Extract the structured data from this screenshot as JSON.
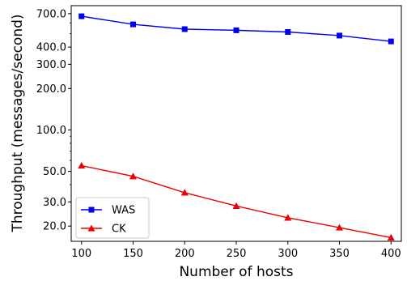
{
  "chart_data": {
    "type": "line",
    "xlabel": "Number of hosts",
    "ylabel": "Throughput (messages/second)",
    "x": [
      100,
      150,
      200,
      250,
      300,
      350,
      400
    ],
    "xlim": [
      90,
      410
    ],
    "ylim": [
      15.5,
      800
    ],
    "y_scale": "log",
    "x_ticks": [
      "100",
      "150",
      "200",
      "250",
      "300",
      "350",
      "400"
    ],
    "y_ticks": [
      "20.0",
      "30.0",
      "50.0",
      "100.0",
      "200.0",
      "300.0",
      "400.0",
      "700.0"
    ],
    "grid": false,
    "legend_position": "lower-left",
    "series": [
      {
        "name": "WAS",
        "color": "#0000ee",
        "marker": "square",
        "values": [
          670,
          585,
          540,
          530,
          515,
          485,
          440
        ]
      },
      {
        "name": "CK",
        "color": "#ee0000",
        "marker": "triangle",
        "values": [
          55,
          46,
          35,
          28,
          23,
          19.5,
          16.5
        ]
      }
    ]
  }
}
